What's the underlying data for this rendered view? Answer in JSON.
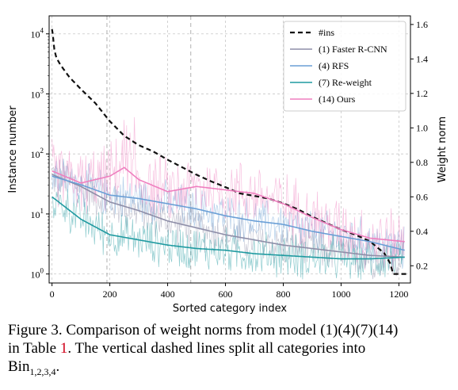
{
  "chart_data": {
    "type": "line",
    "xlabel": "Sorted category index",
    "ylabel_left": "Instance number",
    "ylabel_right": "Weight norm",
    "xlim": [
      -10,
      1240
    ],
    "ylim_left_log10": [
      -0.15,
      4.3
    ],
    "ylim_right": [
      0.1,
      1.65
    ],
    "left_scale": "log",
    "grid": true,
    "legend_position": "top-right",
    "x_ticks": [
      "0",
      "200",
      "400",
      "600",
      "800",
      "1000",
      "1200"
    ],
    "y_left_ticks": [
      "10^0",
      "10^1",
      "10^2",
      "10^3",
      "10^4"
    ],
    "y_right_ticks": [
      "0.2",
      "0.4",
      "0.6",
      "0.8",
      "1.0",
      "1.2",
      "1.4",
      "1.6"
    ],
    "bin_boundaries": [
      190,
      480
    ],
    "series": [
      {
        "name": "#ins",
        "axis": "left",
        "color": "#111111",
        "dash": true,
        "x": [
          0,
          3,
          8,
          15,
          30,
          60,
          100,
          150,
          200,
          250,
          300,
          350,
          400,
          450,
          500,
          550,
          600,
          650,
          700,
          750,
          800,
          850,
          900,
          950,
          1000,
          1050,
          1100,
          1150,
          1170,
          1180,
          1230
        ],
        "values": [
          12000,
          9500,
          5500,
          4000,
          3000,
          1900,
          1200,
          700,
          350,
          200,
          140,
          110,
          80,
          60,
          45,
          35,
          28,
          22,
          20,
          18,
          15,
          12,
          9,
          7,
          5.5,
          4.5,
          3.5,
          2.2,
          1.5,
          1.0,
          1.0
        ]
      },
      {
        "name": "(1) Faster R-CNN",
        "axis": "right",
        "color": "#8e8ea8",
        "x": [
          0,
          100,
          200,
          300,
          400,
          500,
          600,
          700,
          800,
          900,
          1000,
          1100,
          1220
        ],
        "values": [
          0.73,
          0.66,
          0.57,
          0.52,
          0.46,
          0.42,
          0.38,
          0.35,
          0.32,
          0.3,
          0.28,
          0.26,
          0.25
        ]
      },
      {
        "name": "(4) RFS",
        "axis": "right",
        "color": "#6a9fd6",
        "x": [
          0,
          100,
          200,
          300,
          400,
          500,
          600,
          700,
          800,
          900,
          1000,
          1100,
          1220
        ],
        "values": [
          0.72,
          0.67,
          0.61,
          0.59,
          0.56,
          0.53,
          0.49,
          0.46,
          0.44,
          0.4,
          0.37,
          0.34,
          0.29
        ]
      },
      {
        "name": "(7) Re-weight",
        "axis": "right",
        "color": "#1f9aa0",
        "x": [
          0,
          100,
          200,
          300,
          400,
          500,
          600,
          700,
          800,
          900,
          1000,
          1100,
          1220
        ],
        "values": [
          0.6,
          0.47,
          0.38,
          0.35,
          0.32,
          0.3,
          0.29,
          0.27,
          0.26,
          0.25,
          0.24,
          0.24,
          0.25
        ]
      },
      {
        "name": "(14) Ours",
        "axis": "right",
        "color": "#ef7fbf",
        "x": [
          0,
          100,
          200,
          250,
          300,
          400,
          500,
          600,
          700,
          800,
          900,
          1000,
          1100,
          1220
        ],
        "values": [
          0.75,
          0.68,
          0.72,
          0.77,
          0.7,
          0.63,
          0.66,
          0.64,
          0.62,
          0.56,
          0.48,
          0.41,
          0.36,
          0.34
        ]
      }
    ]
  },
  "caption": {
    "line1": "Figure 3. Comparison of weight norms from model (1)(4)(7)(14)",
    "line2_pre": "in Table ",
    "line2_ref": "1",
    "line2_post": ".  The vertical dashed lines split all categories into",
    "line3_pre": "Bin",
    "line3_sub": "1,2,3,4",
    "line3_post": "."
  }
}
